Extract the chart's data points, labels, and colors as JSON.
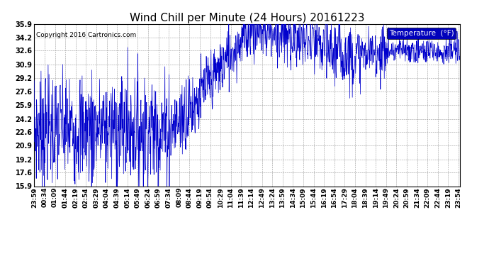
{
  "title": "Wind Chill per Minute (24 Hours) 20161223",
  "copyright": "Copyright 2016 Cartronics.com",
  "legend_label": "Temperature  (°F)",
  "line_color": "#0000cc",
  "legend_bg": "#0000bb",
  "legend_text_color": "#ffffff",
  "background_color": "#ffffff",
  "grid_color": "#999999",
  "ylim": [
    15.9,
    35.9
  ],
  "yticks": [
    15.9,
    17.6,
    19.2,
    20.9,
    22.6,
    24.2,
    25.9,
    27.6,
    29.2,
    30.9,
    32.6,
    34.2,
    35.9
  ],
  "title_fontsize": 11,
  "axis_fontsize": 7,
  "copyright_fontsize": 6.5,
  "tick_labels": [
    "23:59",
    "00:34",
    "01:09",
    "01:44",
    "02:19",
    "02:54",
    "03:29",
    "04:04",
    "04:39",
    "05:14",
    "05:49",
    "06:24",
    "06:59",
    "07:34",
    "08:09",
    "08:44",
    "09:19",
    "09:54",
    "10:29",
    "11:04",
    "11:39",
    "12:14",
    "12:49",
    "13:24",
    "13:59",
    "14:34",
    "15:09",
    "15:44",
    "16:19",
    "16:54",
    "17:29",
    "18:04",
    "18:39",
    "19:14",
    "19:49",
    "20:24",
    "20:59",
    "21:34",
    "22:09",
    "22:44",
    "23:19",
    "23:54"
  ]
}
